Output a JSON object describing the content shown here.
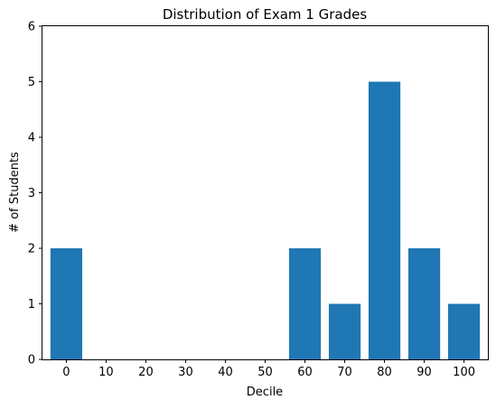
{
  "chart_data": {
    "type": "bar",
    "title": "Distribution of Exam 1 Grades",
    "xlabel": "Decile",
    "ylabel": "# of Students",
    "categories": [
      "0",
      "10",
      "20",
      "30",
      "40",
      "50",
      "60",
      "70",
      "80",
      "90",
      "100"
    ],
    "values": [
      2,
      0,
      0,
      0,
      0,
      0,
      2,
      1,
      5,
      2,
      1
    ],
    "ylim": [
      0,
      6
    ],
    "yticks": [
      "0",
      "1",
      "2",
      "3",
      "4",
      "5",
      "6"
    ],
    "grid": false,
    "bar_color": "#1f77b4"
  }
}
